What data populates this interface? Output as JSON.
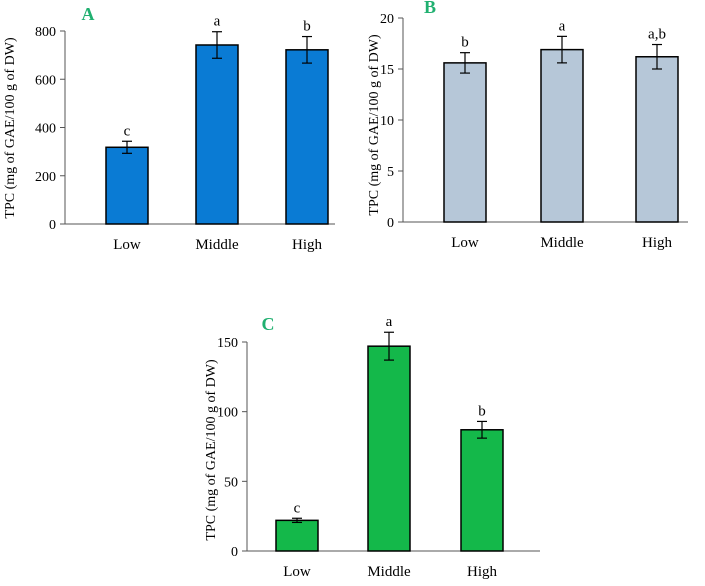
{
  "chart_data": [
    {
      "type": "bar",
      "panel_label": "A",
      "ylabel": "TPC (mg of  GAE/100 g of DW)",
      "categories": [
        "Low",
        "Middle",
        "High"
      ],
      "values": [
        318,
        742,
        722
      ],
      "errors": [
        25,
        55,
        55
      ],
      "significance": [
        "c",
        "a",
        "b"
      ],
      "ylim": [
        0,
        800
      ],
      "yticks": [
        "0",
        "200",
        "400",
        "600",
        "800"
      ],
      "bar_color": "#0a7bd4",
      "grid": false
    },
    {
      "type": "bar",
      "panel_label": "B",
      "ylabel": "TPC (mg of GAE/100 g of DW)",
      "categories": [
        "Low",
        "Middle",
        "High"
      ],
      "values": [
        15.6,
        16.9,
        16.2
      ],
      "errors": [
        1.0,
        1.3,
        1.2
      ],
      "significance": [
        "b",
        "a",
        "a,b"
      ],
      "ylim": [
        0,
        20
      ],
      "yticks": [
        "0",
        "5",
        "10",
        "15",
        "20"
      ],
      "bar_color": "#b6c7d8",
      "grid": false
    },
    {
      "type": "bar",
      "panel_label": "C",
      "ylabel": "TPC (mg of GAE/100 g of DW)",
      "categories": [
        "Low",
        "Middle",
        "High"
      ],
      "values": [
        22,
        147,
        87
      ],
      "errors": [
        1.5,
        10,
        6
      ],
      "significance": [
        "c",
        "a",
        "b"
      ],
      "ylim": [
        0,
        150
      ],
      "yticks": [
        "0",
        "50",
        "100",
        "150"
      ],
      "bar_color": "#14b84a",
      "grid": false
    }
  ]
}
